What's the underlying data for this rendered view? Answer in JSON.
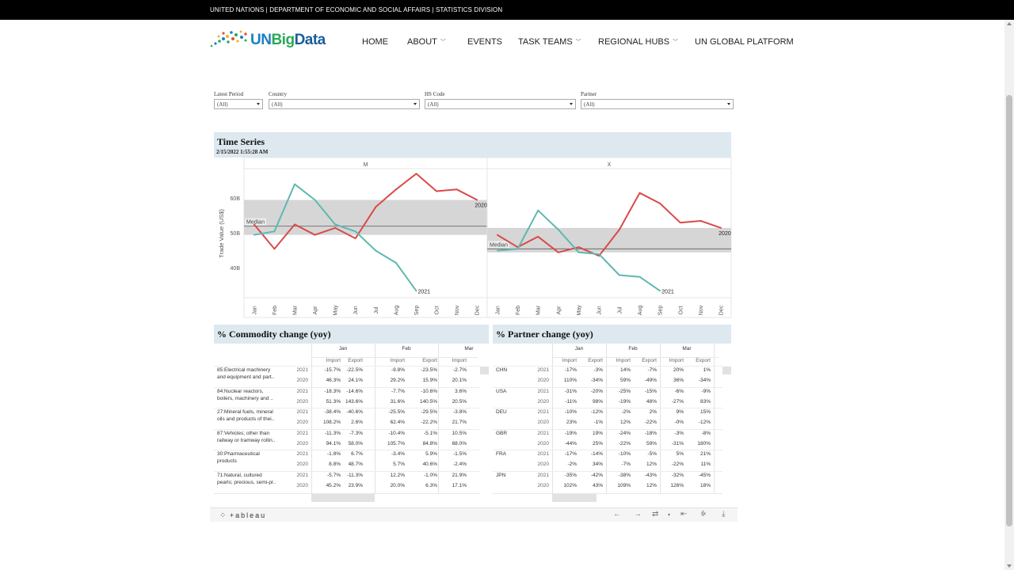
{
  "topbar": {
    "text": "UNITED NATIONS   |   DEPARTMENT OF ECONOMIC AND SOCIAL AFFAIRS   |   STATISTICS DIVISION"
  },
  "logo": {
    "un": "UN",
    "big": "Big",
    "data": "Data"
  },
  "nav": [
    {
      "label": "HOME",
      "dropdown": false
    },
    {
      "label": "ABOUT",
      "dropdown": true
    },
    {
      "label": "EVENTS",
      "dropdown": false
    },
    {
      "label": "TASK TEAMS",
      "dropdown": true
    },
    {
      "label": "REGIONAL HUBS",
      "dropdown": true
    },
    {
      "label": "UN GLOBAL PLATFORM",
      "dropdown": false
    }
  ],
  "filters": [
    {
      "label": "Latest Period",
      "value": "(All)"
    },
    {
      "label": "Country",
      "value": "(All)"
    },
    {
      "label": "HS Code",
      "value": "(All)"
    },
    {
      "label": "Partner",
      "value": "(All)"
    }
  ],
  "time_series": {
    "title": "Time Series",
    "timestamp": "2/15/2022 1:55:28 AM"
  },
  "chart_data": {
    "type": "line",
    "ylabel": "Trade Value (US$)",
    "yticks": [
      "40B",
      "50B",
      "60B"
    ],
    "ylim": [
      32,
      68
    ],
    "x": [
      "Jan",
      "Feb",
      "Mar",
      "Apr",
      "May",
      "Jun",
      "Jul",
      "Aug",
      "Sep",
      "Oct",
      "Nov",
      "Dec"
    ],
    "colors": {
      "2020": "#d94a4a",
      "2021": "#5fb8b0"
    },
    "panels": [
      {
        "name": "M",
        "median_label": "Median",
        "median": 52,
        "band": [
          49.5,
          59.5
        ],
        "series": [
          {
            "name": "2020",
            "values": [
              52.5,
              45.5,
              52.5,
              49.5,
              51.5,
              48.5,
              57.5,
              62.5,
              67,
              62,
              62.5,
              59.5
            ]
          },
          {
            "name": "2021",
            "values": [
              49.5,
              50.5,
              64,
              59.5,
              52.5,
              50.5,
              45,
              41.5,
              33.5
            ]
          }
        ]
      },
      {
        "name": "X",
        "median_label": "Median",
        "median": 45.5,
        "band": [
          44.5,
          51.5
        ],
        "series": [
          {
            "name": "2020",
            "values": [
              49.5,
              46,
              49,
              44.5,
              46,
              43.5,
              51,
              61.5,
              58.5,
              53,
              53.5,
              51.5
            ]
          },
          {
            "name": "2021",
            "values": [
              45,
              45.5,
              56.5,
              51,
              44.5,
              44,
              38,
              37.5,
              33.5
            ]
          }
        ]
      }
    ]
  },
  "commodity": {
    "title": "% Commodity change (yoy)",
    "months": [
      "Jan",
      "Feb",
      "Mar"
    ],
    "sub": [
      "Import",
      "Export",
      "Import",
      "Export",
      "Import"
    ],
    "rows": [
      {
        "name": [
          "85:Electrical machinery",
          "and equipment and part.."
        ],
        "y2021": [
          "2021",
          "-15.7%",
          "-22.5%",
          "-9.8%",
          "-23.5%",
          "-2.7%"
        ],
        "y2020": [
          "2020",
          "46.3%",
          "24.1%",
          "29.2%",
          "15.9%",
          "20.1%"
        ]
      },
      {
        "name": [
          "84:Nuclear reactors,",
          "boilers, machinery and .."
        ],
        "y2021": [
          "2021",
          "-18.3%",
          "-14.6%",
          "-7.7%",
          "-10.6%",
          "3.6%"
        ],
        "y2020": [
          "2020",
          "51.3%",
          "143.6%",
          "31.6%",
          "140.5%",
          "20.5%"
        ]
      },
      {
        "name": [
          "27:Mineral fuels, mineral",
          "oils and products of thei.."
        ],
        "y2021": [
          "2021",
          "-38.4%",
          "-40.6%",
          "-25.5%",
          "-29.5%",
          "-3.8%"
        ],
        "y2020": [
          "2020",
          "108.2%",
          "2.6%",
          "62.4%",
          "-22.2%",
          "21.7%"
        ]
      },
      {
        "name": [
          "87:Vehicles; other than",
          "railway or tramway rollin.."
        ],
        "y2021": [
          "2021",
          "-11.3%",
          "-7.3%",
          "-10.4%",
          "-5.1%",
          "10.5%"
        ],
        "y2020": [
          "2020",
          "94.1%",
          "58.0%",
          "105.7%",
          "84.8%",
          "68.0%"
        ]
      },
      {
        "name": [
          "30:Pharmaceutical",
          "products"
        ],
        "y2021": [
          "2021",
          "-1.8%",
          "6.7%",
          "-3.4%",
          "5.9%",
          "-1.5%"
        ],
        "y2020": [
          "2020",
          "8.8%",
          "48.7%",
          "5.7%",
          "40.6%",
          "-2.4%"
        ]
      },
      {
        "name": [
          "71:Natural, cultured",
          "pearls; precious, semi-pr.."
        ],
        "y2021": [
          "2021",
          "-5.7%",
          "-11.3%",
          "12.2%",
          "-1.0%",
          "21.9%"
        ],
        "y2020": [
          "2020",
          "45.2%",
          "23.9%",
          "20.0%",
          "6.3%",
          "17.1%"
        ]
      }
    ]
  },
  "partner": {
    "title": "% Partner change (yoy)",
    "months": [
      "Jan",
      "Feb",
      "Mar"
    ],
    "sub": [
      "Import",
      "Export",
      "Import",
      "Export",
      "Import",
      "Export"
    ],
    "rows": [
      {
        "name": "CHN",
        "y2021": [
          "2021",
          "-17%",
          "-3%",
          "14%",
          "-7%",
          "20%",
          "1%"
        ],
        "y2020": [
          "2020",
          "110%",
          "-34%",
          "59%",
          "-49%",
          "36%",
          "-34%"
        ]
      },
      {
        "name": "USA",
        "y2021": [
          "2021",
          "-31%",
          "-20%",
          "-25%",
          "-15%",
          "-6%",
          "-9%"
        ],
        "y2020": [
          "2020",
          "-11%",
          "98%",
          "-19%",
          "48%",
          "-27%",
          "83%"
        ]
      },
      {
        "name": "DEU",
        "y2021": [
          "2021",
          "-10%",
          "-12%",
          "-2%",
          "2%",
          "9%",
          "15%"
        ],
        "y2020": [
          "2020",
          "23%",
          "-1%",
          "12%",
          "-22%",
          "-0%",
          "-12%"
        ]
      },
      {
        "name": "GBR",
        "y2021": [
          "2021",
          "-19%",
          "19%",
          "-24%",
          "-18%",
          "-3%",
          "-8%"
        ],
        "y2020": [
          "2020",
          "-44%",
          "25%",
          "-22%",
          "59%",
          "-31%",
          "180%"
        ]
      },
      {
        "name": "FRA",
        "y2021": [
          "2021",
          "-17%",
          "-14%",
          "-10%",
          "-5%",
          "5%",
          "21%"
        ],
        "y2020": [
          "2020",
          "-2%",
          "34%",
          "-7%",
          "12%",
          "-22%",
          "11%"
        ]
      },
      {
        "name": "JPN",
        "y2021": [
          "2021",
          "-35%",
          "-42%",
          "-38%",
          "-43%",
          "-32%",
          "-45%"
        ],
        "y2020": [
          "2020",
          "102%",
          "43%",
          "109%",
          "12%",
          "126%",
          "18%"
        ]
      }
    ]
  },
  "toolbar": {
    "brand": "+ableau"
  }
}
